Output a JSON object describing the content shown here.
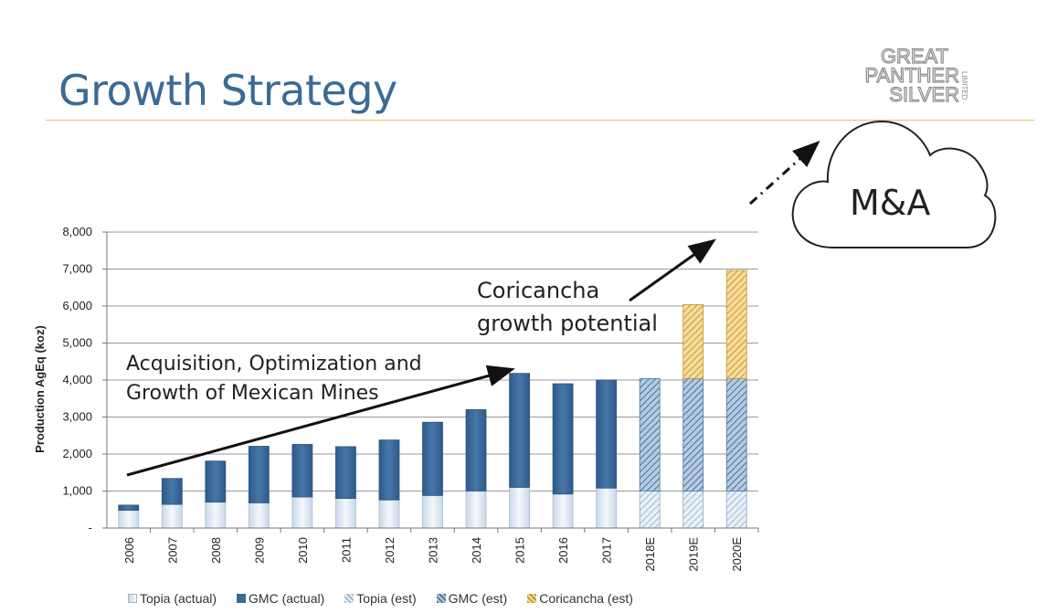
{
  "slide": {
    "title": "Growth Strategy",
    "logo": {
      "line1": "GREAT",
      "line2": "PANTHER",
      "line3": "SILVER",
      "tag": "LIMITED"
    }
  },
  "annotations": {
    "mexican_l1": "Acquisition, Optimization and",
    "mexican_l2": "Growth of Mexican Mines",
    "coricancha_l1": "Coricancha",
    "coricancha_l2": "growth potential",
    "cloud": "M&A"
  },
  "colors": {
    "topia_actual": "#dfe8f2",
    "gmc_actual": "#3b6a9a",
    "topia_est": "#cbdbea",
    "gmc_est": "#7fa3c6",
    "coricancha_est": "#e8c064",
    "title": "#3c6a96",
    "rule": "#e3c56a"
  },
  "chart_data": {
    "type": "bar",
    "stacked": true,
    "categories": [
      "2006",
      "2007",
      "2008",
      "2009",
      "2010",
      "2011",
      "2012",
      "2013",
      "2014",
      "2015",
      "2016",
      "2017",
      "2018E",
      "2019E",
      "2020E"
    ],
    "ylabel": "Production AgEq (koz)",
    "ylim": [
      0,
      8000
    ],
    "yticks": [
      "-",
      "1,000",
      "2,000",
      "3,000",
      "4,000",
      "5,000",
      "6,000",
      "7,000",
      "8,000"
    ],
    "grid": true,
    "legend_position": "bottom",
    "series": [
      {
        "name": "Topia (actual)",
        "values": [
          480,
          640,
          700,
          680,
          840,
          800,
          760,
          880,
          1000,
          1100,
          920,
          1080,
          0,
          0,
          0
        ]
      },
      {
        "name": "GMC (actual)",
        "values": [
          140,
          700,
          1110,
          1530,
          1420,
          1400,
          1620,
          1980,
          2200,
          3080,
          2980,
          2920,
          0,
          0,
          0
        ]
      },
      {
        "name": "Topia (est)",
        "values": [
          0,
          0,
          0,
          0,
          0,
          0,
          0,
          0,
          0,
          0,
          0,
          0,
          1000,
          1000,
          1000
        ]
      },
      {
        "name": "GMC (est)",
        "values": [
          0,
          0,
          0,
          0,
          0,
          0,
          0,
          0,
          0,
          0,
          0,
          0,
          3040,
          3040,
          3040
        ]
      },
      {
        "name": "Coricancha (est)",
        "values": [
          0,
          0,
          0,
          0,
          0,
          0,
          0,
          0,
          0,
          0,
          0,
          0,
          0,
          2000,
          2920
        ]
      }
    ]
  }
}
